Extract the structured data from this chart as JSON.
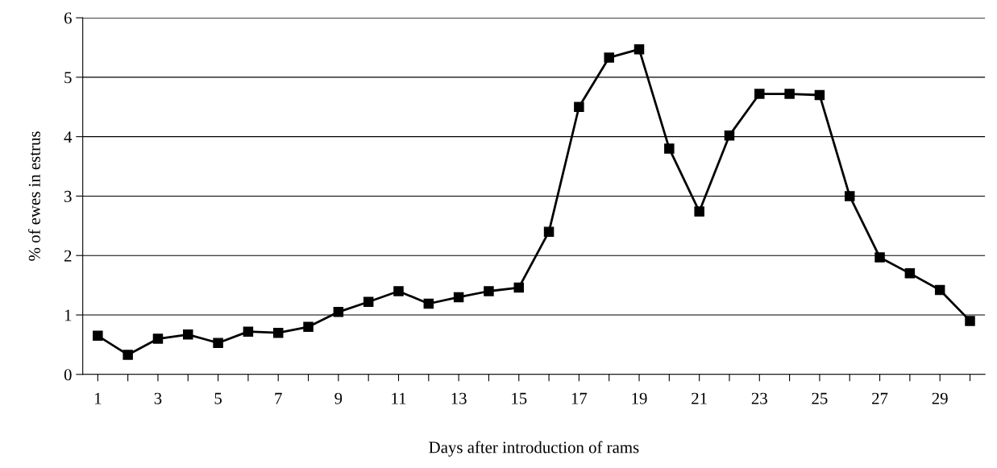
{
  "chart_data": {
    "type": "line",
    "xlabel": "Days after introduction of rams",
    "ylabel": "% of ewes in estrus",
    "categories": [
      "1",
      null,
      "3",
      null,
      "5",
      null,
      "7",
      null,
      "9",
      null,
      "11",
      null,
      "13",
      null,
      "15",
      null,
      "17",
      null,
      "19",
      null,
      "21",
      null,
      "23",
      null,
      "25",
      null,
      "27",
      null,
      "29",
      null
    ],
    "series": [
      {
        "color": "#000000",
        "values": [
          0.65,
          0.33,
          0.6,
          0.67,
          0.53,
          0.72,
          0.7,
          0.8,
          1.05,
          1.22,
          1.4,
          1.19,
          1.3,
          1.4,
          1.46,
          2.4,
          4.5,
          5.33,
          5.47,
          3.8,
          2.74,
          4.02,
          4.72,
          4.72,
          4.7,
          3.0,
          1.97,
          1.7,
          1.42,
          0.9
        ]
      }
    ],
    "ylim": [
      0,
      6
    ],
    "yticks": [
      0,
      1,
      2,
      3,
      4,
      5,
      6
    ],
    "grid": "y",
    "marker": "square",
    "line_style": "solid",
    "legend": false
  }
}
